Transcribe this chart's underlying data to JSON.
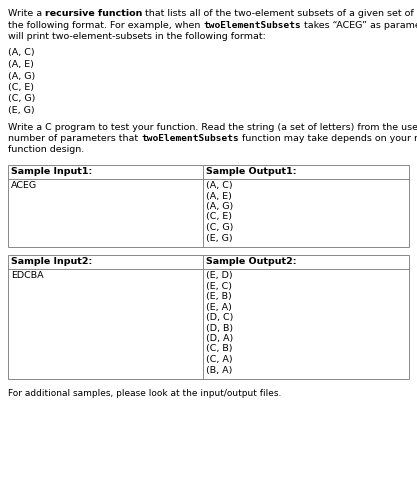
{
  "bg_color": "#ffffff",
  "text_color": "#000000",
  "table_border_color": "#888888",
  "font_size_body": 6.8,
  "font_size_table": 6.8,
  "font_size_footer": 6.5,
  "para1_lines": [
    [
      [
        "Write a ",
        false,
        false
      ],
      [
        "recursive function",
        true,
        false
      ],
      [
        " that lists all of the two-element subsets of a given set of letters in",
        false,
        false
      ]
    ],
    [
      [
        "the following format. For example, when ",
        false,
        false
      ],
      [
        "twoElementSubsets",
        true,
        true
      ],
      [
        " takes “ACEG” as parameter, it",
        false,
        false
      ]
    ],
    [
      [
        "will print two-element-subsets in the following format:",
        false,
        false
      ]
    ]
  ],
  "example_lines": [
    "(A, C)",
    "(A, E)",
    "(A, G)",
    "(C, E)",
    "(C, G)",
    "(E, G)"
  ],
  "para2_lines": [
    [
      [
        "Write a C program to test your function. Read the string (a set of letters) from the user.  The",
        false,
        false
      ]
    ],
    [
      [
        "number of parameters that ",
        false,
        false
      ],
      [
        "twoElementSubsets",
        true,
        true
      ],
      [
        " function may take depends on your recursive",
        false,
        false
      ]
    ],
    [
      [
        "function design.",
        false,
        false
      ]
    ]
  ],
  "table1_header_left": "Sample Input1:",
  "table1_header_right": "Sample Output1:",
  "table1_input": "ACEG",
  "table1_output": [
    "(A, C)",
    "(A, E)",
    "(A, G)",
    "(C, E)",
    "(C, G)",
    "(E, G)"
  ],
  "table2_header_left": "Sample Input2:",
  "table2_header_right": "Sample Output2:",
  "table2_input": "EDCBA",
  "table2_output": [
    "(E, D)",
    "(E, C)",
    "(E, B)",
    "(E, A)",
    "(D, C)",
    "(D, B)",
    "(D, A)",
    "(C, B)",
    "(C, A)",
    "(B, A)"
  ],
  "footer": "For additional samples, please look at the input/output files."
}
